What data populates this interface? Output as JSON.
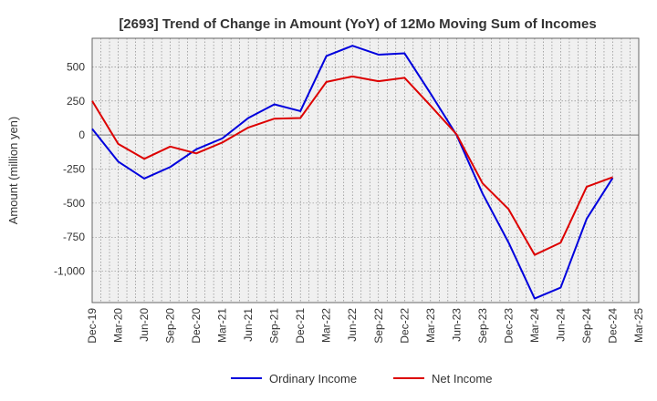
{
  "chart_data": {
    "type": "line",
    "title": "[2693]  Trend of Change in Amount (YoY) of 12Mo Moving Sum of Incomes",
    "xlabel": "",
    "ylabel": "Amount (million yen)",
    "ylim": [
      -1230,
      710
    ],
    "yticks": [
      500,
      250,
      0,
      -250,
      -500,
      -750,
      -1000
    ],
    "ytick_labels": [
      "500",
      "250",
      "0",
      "-250",
      "-500",
      "-750",
      "-1,000"
    ],
    "x_minor_per_major": 3,
    "categories": [
      "Dec-19",
      "Mar-20",
      "Jun-20",
      "Sep-20",
      "Dec-20",
      "Mar-21",
      "Jun-21",
      "Sep-21",
      "Dec-21",
      "Mar-22",
      "Jun-22",
      "Sep-22",
      "Dec-22",
      "Mar-23",
      "Jun-23",
      "Sep-23",
      "Dec-23",
      "Mar-24",
      "Jun-24",
      "Sep-24",
      "Dec-24",
      "Mar-25"
    ],
    "series": [
      {
        "name": "Ordinary Income",
        "color": "#0000dd",
        "values": [
          45,
          -195,
          -320,
          -235,
          -105,
          -25,
          125,
          225,
          175,
          580,
          655,
          590,
          600,
          305,
          0,
          -430,
          -790,
          -1200,
          -1120,
          -615,
          -315,
          null
        ]
      },
      {
        "name": "Net Income",
        "color": "#dd0000",
        "values": [
          250,
          -65,
          -175,
          -85,
          -135,
          -55,
          55,
          120,
          125,
          390,
          430,
          395,
          420,
          215,
          5,
          -355,
          -545,
          -880,
          -790,
          -380,
          -310,
          null
        ]
      }
    ],
    "legend_position": "bottom-center",
    "grid": true
  }
}
